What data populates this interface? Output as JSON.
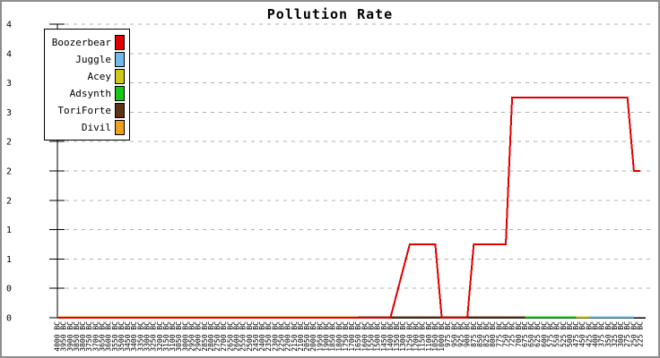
{
  "title": "Pollution Rate",
  "legend": {
    "items": [
      {
        "label": "Boozerbear",
        "color": "#e00000"
      },
      {
        "label": "Juggle",
        "color": "#6fbbe8"
      },
      {
        "label": "Acey",
        "color": "#cdc819"
      },
      {
        "label": "Adsynth",
        "color": "#16c816"
      },
      {
        "label": "ToriForte",
        "color": "#5c3317"
      },
      {
        "label": "Divil",
        "color": "#f0a01e"
      }
    ]
  },
  "chart_data": {
    "type": "line",
    "title": "Pollution Rate",
    "xlabel": "",
    "ylabel": "",
    "ylim": [
      0,
      4
    ],
    "grid": "horizontal-dashed",
    "grid_color": "#b0b0b0",
    "legend_position": "top-left",
    "x_tick_label_suffix": " BC",
    "x_years": [
      4000,
      3950,
      3900,
      3850,
      3800,
      3750,
      3700,
      3650,
      3600,
      3550,
      3500,
      3450,
      3400,
      3350,
      3300,
      3250,
      3200,
      3150,
      3100,
      3050,
      3000,
      2950,
      2900,
      2850,
      2800,
      2750,
      2700,
      2650,
      2600,
      2550,
      2500,
      2450,
      2400,
      2350,
      2300,
      2250,
      2200,
      2150,
      2100,
      2050,
      2000,
      1950,
      1900,
      1850,
      1800,
      1750,
      1700,
      1650,
      1600,
      1550,
      1500,
      1450,
      1400,
      1350,
      1300,
      1250,
      1200,
      1150,
      1100,
      1050,
      1000,
      975,
      950,
      925,
      900,
      875,
      850,
      825,
      800,
      775,
      750,
      725,
      700,
      675,
      650,
      625,
      600,
      575,
      550,
      525,
      500,
      475,
      450,
      425,
      400,
      375,
      350,
      325,
      300,
      275,
      250,
      225
    ],
    "y_ticks": [
      {
        "value": 4.0,
        "label": "4"
      },
      {
        "value": 3.6,
        "label": "4"
      },
      {
        "value": 3.2,
        "label": "3"
      },
      {
        "value": 2.8,
        "label": "3"
      },
      {
        "value": 2.4,
        "label": "2"
      },
      {
        "value": 2.0,
        "label": "2"
      },
      {
        "value": 1.6,
        "label": "2"
      },
      {
        "value": 1.2,
        "label": "1"
      },
      {
        "value": 0.8,
        "label": "1"
      },
      {
        "value": 0.4,
        "label": "0"
      },
      {
        "value": 0.0,
        "label": "0"
      }
    ],
    "series": [
      {
        "name": "Boozerbear",
        "color": "#e00000",
        "breakpoints": [
          [
            4000,
            0
          ],
          [
            1400,
            0
          ],
          [
            1250,
            1
          ],
          [
            1050,
            1
          ],
          [
            1000,
            0
          ],
          [
            900,
            0
          ],
          [
            875,
            1
          ],
          [
            750,
            1
          ],
          [
            725,
            3
          ],
          [
            275,
            3
          ],
          [
            250,
            2
          ],
          [
            225,
            2
          ]
        ]
      },
      {
        "name": "Juggle",
        "color": "#6fbbe8",
        "breakpoints": [
          [
            4000,
            0
          ],
          [
            225,
            0
          ]
        ]
      },
      {
        "name": "Acey",
        "color": "#cdc819",
        "breakpoints": [
          [
            4000,
            0
          ],
          [
            225,
            0
          ]
        ]
      },
      {
        "name": "Adsynth",
        "color": "#16c816",
        "breakpoints": [
          [
            4000,
            0
          ],
          [
            225,
            0
          ]
        ]
      },
      {
        "name": "ToriForte",
        "color": "#5c3317",
        "breakpoints": [
          [
            4000,
            0
          ],
          [
            225,
            0
          ]
        ]
      },
      {
        "name": "Divil",
        "color": "#f0a01e",
        "breakpoints": [
          [
            4000,
            0
          ],
          [
            225,
            0
          ]
        ]
      }
    ],
    "zero_line_visible_segments": [
      {
        "series": "Divil",
        "color": "#f0a01e",
        "from_year": 4000,
        "to_year": 1650
      },
      {
        "series": "ToriForte",
        "color": "#5c3317",
        "from_year": 1650,
        "to_year": 675
      },
      {
        "series": "Adsynth",
        "color": "#16c816",
        "from_year": 675,
        "to_year": 475
      },
      {
        "series": "Acey",
        "color": "#cdc819",
        "from_year": 475,
        "to_year": 425
      },
      {
        "series": "Juggle",
        "color": "#6fbbe8",
        "from_year": 425,
        "to_year": 250
      }
    ]
  }
}
